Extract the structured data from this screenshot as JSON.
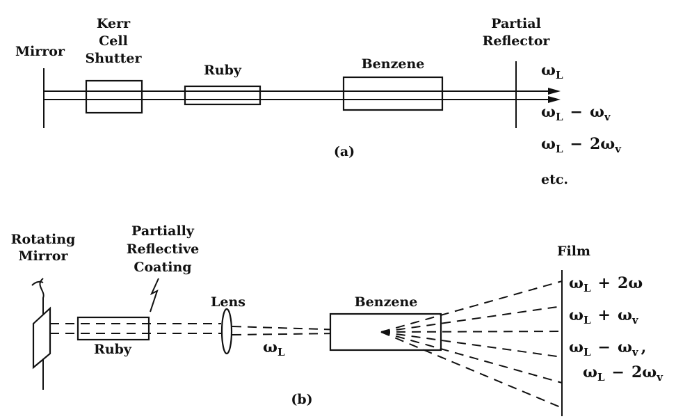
{
  "diagram_a": {
    "mirror_label": "Mirror",
    "kerr_line1": "Kerr",
    "kerr_line2": "Cell",
    "kerr_line3": "Shutter",
    "ruby_label": "Ruby",
    "benzene_label": "Benzene",
    "partial_line1": "Partial",
    "partial_line2": "Reflector",
    "out1_main": "ω",
    "out1_sub": "L",
    "out2_main1": "ω",
    "out2_sub1": "L",
    "out2_op": "−",
    "out2_main2": "ω",
    "out2_sub2": "v",
    "out3_main1": "ω",
    "out3_sub1": "L",
    "out3_op": "−",
    "out3_main2": "2ω",
    "out3_sub2": "v",
    "etc": "etc.",
    "caption": "(a)"
  },
  "diagram_b": {
    "rotating_line1": "Rotating",
    "rotating_line2": "Mirror",
    "coating_line1": "Partially",
    "coating_line2": "Reflective",
    "coating_line3": "Coating",
    "ruby_label": "Ruby",
    "lens_label": "Lens",
    "beam_main": "ω",
    "beam_sub": "L",
    "benzene_label": "Benzene",
    "film_label": "Film",
    "f1_main1": "ω",
    "f1_sub1": "L",
    "f1_op": "+",
    "f1_main2": "2ω",
    "f2_main1": "ω",
    "f2_sub1": "L",
    "f2_op": "+",
    "f2_main2": "ω",
    "f2_sub2": "v",
    "f3_main1": "ω",
    "f3_sub1": "L",
    "f3_op": "−",
    "f3_main2": "ω",
    "f3_sub2": "v",
    "f3_comma": ",",
    "f4_main1": "ω",
    "f4_sub1": "L",
    "f4_op": "−",
    "f4_main2": "2ω",
    "f4_sub2": "v",
    "caption": "(b)"
  }
}
